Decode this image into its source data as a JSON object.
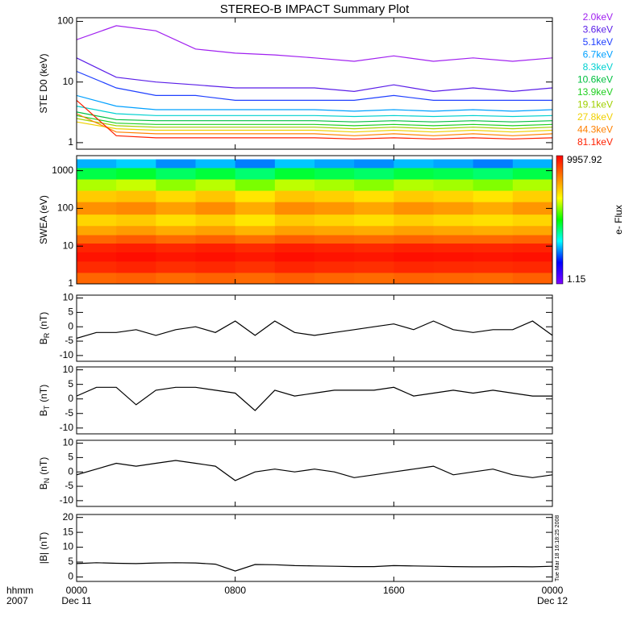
{
  "chart_data": [
    {
      "type": "line",
      "title": "STEREO-B IMPACT Summary Plot",
      "ylabel": "STE D0 (keV)",
      "log_y": true,
      "ylim": [
        0.78,
        115
      ],
      "yticks": [
        1,
        10,
        100
      ],
      "xlim": [
        0,
        24
      ],
      "x": [
        0,
        2,
        4,
        6,
        8,
        10,
        12,
        14,
        16,
        18,
        20,
        22,
        24
      ],
      "series": [
        {
          "name": "2.0keV",
          "color": "#a020f0",
          "values": [
            50,
            85,
            70,
            35,
            30,
            28,
            25,
            22,
            27,
            22,
            25,
            22,
            25
          ]
        },
        {
          "name": "3.6keV",
          "color": "#5a1ee8",
          "values": [
            25,
            12,
            10,
            9,
            8,
            8,
            8,
            7,
            9,
            7,
            8,
            7,
            8
          ]
        },
        {
          "name": "5.1keV",
          "color": "#2040ff",
          "values": [
            15,
            8,
            6,
            6,
            5,
            5,
            5,
            5,
            6,
            5,
            5,
            5,
            5
          ]
        },
        {
          "name": "6.7keV",
          "color": "#00a0ff",
          "values": [
            6,
            4,
            3.5,
            3.5,
            3.5,
            3.5,
            3.5,
            3.3,
            3.5,
            3.3,
            3.5,
            3.3,
            3.5
          ]
        },
        {
          "name": "8.3keV",
          "color": "#00d0d0",
          "values": [
            4,
            3,
            2.8,
            2.8,
            2.8,
            2.8,
            2.8,
            2.7,
            2.8,
            2.7,
            2.8,
            2.7,
            2.8
          ]
        },
        {
          "name": "10.6keV",
          "color": "#00c040",
          "values": [
            3.2,
            2.4,
            2.3,
            2.3,
            2.3,
            2.3,
            2.3,
            2.2,
            2.3,
            2.2,
            2.3,
            2.2,
            2.3
          ]
        },
        {
          "name": "13.9keV",
          "color": "#20d020",
          "values": [
            2.8,
            2.1,
            2,
            2,
            2,
            2,
            2,
            1.9,
            2,
            1.9,
            2,
            1.9,
            2
          ]
        },
        {
          "name": "19.1keV",
          "color": "#a0d000",
          "values": [
            2.5,
            1.9,
            1.8,
            1.8,
            1.8,
            1.8,
            1.8,
            1.7,
            1.8,
            1.7,
            1.8,
            1.7,
            1.8
          ]
        },
        {
          "name": "27.8keV",
          "color": "#f0d000",
          "values": [
            2.2,
            1.7,
            1.6,
            1.6,
            1.6,
            1.6,
            1.6,
            1.5,
            1.6,
            1.5,
            1.6,
            1.5,
            1.6
          ]
        },
        {
          "name": "44.3keV",
          "color": "#ff8000",
          "values": [
            3,
            1.5,
            1.4,
            1.4,
            1.4,
            1.4,
            1.4,
            1.3,
            1.4,
            1.3,
            1.4,
            1.3,
            1.4
          ]
        },
        {
          "name": "81.1keV",
          "color": "#ff2000",
          "values": [
            5,
            1.3,
            1.2,
            1.2,
            1.2,
            1.2,
            1.2,
            1.15,
            1.2,
            1.15,
            1.2,
            1.15,
            1.2
          ]
        }
      ]
    },
    {
      "type": "heatmap",
      "ylabel": "SWEA (eV)",
      "colorbar_label": "e- Flux",
      "log_y": true,
      "ylim": [
        1,
        2500
      ],
      "yticks": [
        1,
        10,
        100,
        1000
      ],
      "xlim": [
        0,
        24
      ],
      "clim": [
        1.15,
        9957.92
      ],
      "colorscale": [
        "#7f00ff",
        "#0000ff",
        "#00ffff",
        "#00ff00",
        "#ffff00",
        "#ff8000",
        "#ff0000"
      ],
      "x_edges": [
        0,
        2,
        4,
        6,
        8,
        10,
        12,
        14,
        16,
        18,
        20,
        22,
        24
      ],
      "y_edges": [
        1,
        2,
        4,
        7,
        12,
        20,
        35,
        70,
        150,
        300,
        600,
        1200,
        2000
      ],
      "values": [
        [
          3000,
          3200,
          2800,
          3100,
          2900,
          3300,
          3000,
          2800,
          3100,
          3000,
          2900,
          3200
        ],
        [
          6000,
          6500,
          5800,
          6200,
          5600,
          6400,
          6000,
          5700,
          6300,
          6100,
          5900,
          6200
        ],
        [
          8000,
          8500,
          7800,
          8200,
          7600,
          8400,
          8000,
          7700,
          8300,
          8100,
          7900,
          8200
        ],
        [
          6500,
          7000,
          6200,
          6800,
          6000,
          6900,
          6500,
          6100,
          6700,
          6400,
          6300,
          6600
        ],
        [
          3000,
          3400,
          2800,
          3200,
          2700,
          3300,
          3000,
          2800,
          3100,
          2900,
          2900,
          3100
        ],
        [
          1400,
          1600,
          1300,
          1500,
          1200,
          1500,
          1400,
          1300,
          1500,
          1400,
          1300,
          1400
        ],
        [
          800,
          900,
          700,
          850,
          650,
          900,
          800,
          700,
          850,
          750,
          700,
          800
        ],
        [
          1800,
          2000,
          1500,
          1900,
          1300,
          1900,
          1700,
          1400,
          1800,
          1600,
          1300,
          1700
        ],
        [
          900,
          1000,
          750,
          950,
          650,
          950,
          850,
          700,
          900,
          800,
          650,
          850
        ],
        [
          300,
          350,
          250,
          320,
          220,
          330,
          290,
          240,
          310,
          280,
          230,
          300
        ],
        [
          70,
          80,
          60,
          75,
          55,
          78,
          68,
          58,
          72,
          66,
          56,
          70
        ],
        [
          15,
          18,
          12,
          16,
          11,
          17,
          14,
          12,
          16,
          14,
          11,
          15
        ]
      ]
    },
    {
      "type": "line",
      "ylabel": {
        "main": "B",
        "sub": "R",
        "unit": "(nT)"
      },
      "ylim": [
        -12,
        11
      ],
      "yticks": [
        -10,
        -5,
        0,
        5,
        10
      ],
      "xlim": [
        0,
        24
      ],
      "color": "#000000",
      "x": [
        0,
        1,
        2,
        3,
        4,
        5,
        6,
        7,
        8,
        9,
        10,
        11,
        12,
        13,
        14,
        15,
        16,
        17,
        18,
        19,
        20,
        21,
        22,
        23,
        24
      ],
      "values": [
        -4,
        -2,
        -2,
        -1,
        -3,
        -1,
        0,
        -2,
        2,
        -3,
        2,
        -2,
        -3,
        -2,
        -1,
        0,
        1,
        -1,
        2,
        -1,
        -2,
        -1,
        -1,
        2,
        -3
      ]
    },
    {
      "type": "line",
      "ylabel": {
        "main": "B",
        "sub": "T",
        "unit": "(nT)"
      },
      "ylim": [
        -12,
        11
      ],
      "yticks": [
        -10,
        -5,
        0,
        5,
        10
      ],
      "xlim": [
        0,
        24
      ],
      "color": "#000000",
      "x": [
        0,
        1,
        2,
        3,
        4,
        5,
        6,
        7,
        8,
        9,
        10,
        11,
        12,
        13,
        14,
        15,
        16,
        17,
        18,
        19,
        20,
        21,
        22,
        23,
        24
      ],
      "values": [
        1,
        4,
        4,
        -2,
        3,
        4,
        4,
        3,
        2,
        -4,
        3,
        1,
        2,
        3,
        3,
        3,
        4,
        1,
        2,
        3,
        2,
        3,
        2,
        1,
        1
      ]
    },
    {
      "type": "line",
      "ylabel": {
        "main": "B",
        "sub": "N",
        "unit": "(nT)"
      },
      "ylim": [
        -12,
        11
      ],
      "yticks": [
        -10,
        -5,
        0,
        5,
        10
      ],
      "xlim": [
        0,
        24
      ],
      "color": "#000000",
      "x": [
        0,
        1,
        2,
        3,
        4,
        5,
        6,
        7,
        8,
        9,
        10,
        11,
        12,
        13,
        14,
        15,
        16,
        17,
        18,
        19,
        20,
        21,
        22,
        23,
        24
      ],
      "values": [
        -1,
        1,
        3,
        2,
        3,
        4,
        3,
        2,
        -3,
        0,
        1,
        0,
        1,
        0,
        -2,
        -1,
        0,
        1,
        2,
        -1,
        0,
        1,
        -1,
        -2,
        -1
      ]
    },
    {
      "type": "line",
      "ylabel": "|B| (nT)",
      "annotation": "Tue Mar 18 16:18:25 2008",
      "ylim": [
        -1.5,
        21
      ],
      "yticks": [
        0,
        5,
        10,
        15,
        20
      ],
      "xlim": [
        0,
        24
      ],
      "color": "#000000",
      "xticks": [
        {
          "value": 0,
          "label": "0000"
        },
        {
          "value": 8,
          "label": "0800"
        },
        {
          "value": 16,
          "label": "1600"
        },
        {
          "value": 24,
          "label": "0000"
        }
      ],
      "x_date_labels": [
        {
          "value": 0,
          "label": "Dec 11"
        },
        {
          "value": 24,
          "label": "Dec 12"
        }
      ],
      "x_row_labels": [
        "hhmm",
        "2007"
      ],
      "x": [
        0,
        1,
        2,
        3,
        4,
        5,
        6,
        7,
        8,
        9,
        10,
        11,
        12,
        13,
        14,
        15,
        16,
        17,
        18,
        19,
        20,
        21,
        22,
        23,
        24
      ],
      "values": [
        4.5,
        4.8,
        4.6,
        4.5,
        4.7,
        4.8,
        4.7,
        4.3,
        2,
        4.2,
        4.1,
        3.8,
        3.7,
        3.6,
        3.5,
        3.5,
        3.8,
        3.7,
        3.6,
        3.5,
        3.4,
        3.4,
        3.5,
        3.4,
        3.6
      ]
    }
  ]
}
